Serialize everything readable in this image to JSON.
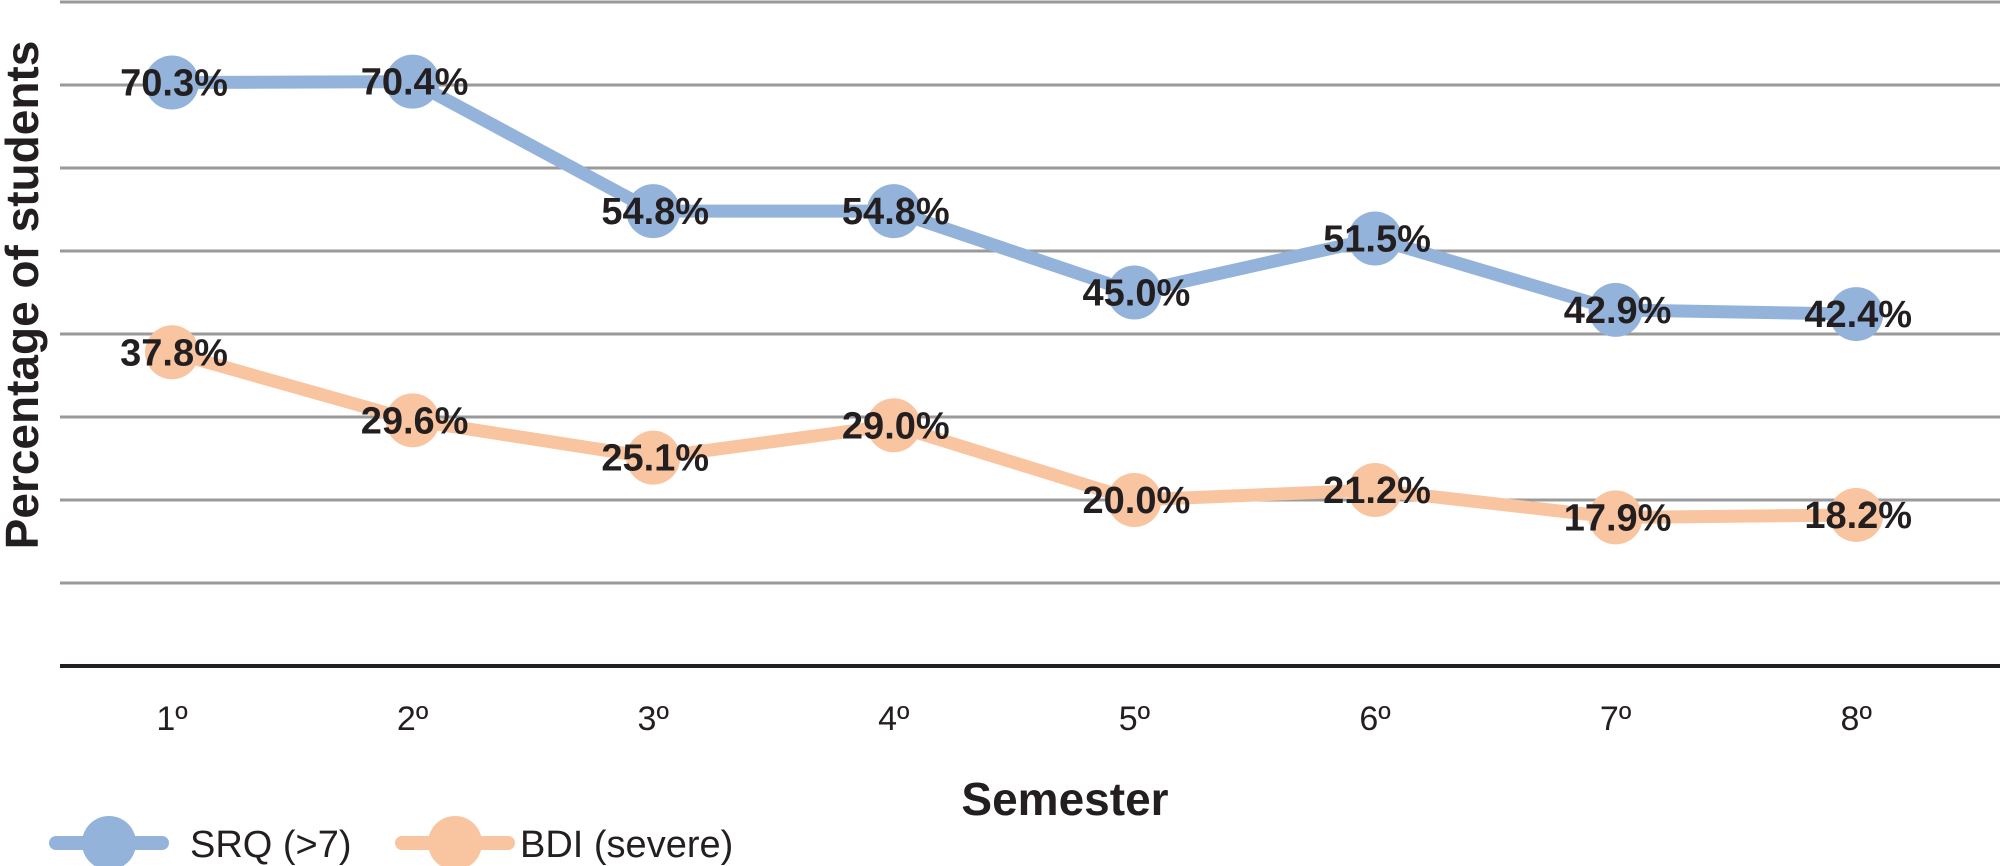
{
  "chart_data": {
    "type": "line",
    "title": "",
    "xlabel": "Semester",
    "ylabel": "Percentage of students",
    "categories": [
      "1º",
      "2º",
      "3º",
      "4º",
      "5º",
      "6º",
      "7º",
      "8º"
    ],
    "ylim": [
      0,
      80
    ],
    "y_grid_step": 10,
    "grid": true,
    "legend_position": "bottom-left",
    "series": [
      {
        "name": "SRQ (>7)",
        "color": "#94b3da",
        "values": [
          70.3,
          70.4,
          54.8,
          54.8,
          45.0,
          51.5,
          42.9,
          42.4
        ],
        "labels": [
          "70.3%",
          "70.4%",
          "54.8%",
          "54.8%",
          "45.0%",
          "51.5%",
          "42.9%",
          "42.4%"
        ]
      },
      {
        "name": "BDI (severe)",
        "color": "#f9c4a0",
        "values": [
          37.8,
          29.6,
          25.1,
          29.0,
          20.0,
          21.2,
          17.9,
          18.2
        ],
        "labels": [
          "37.8%",
          "29.6%",
          "25.1%",
          "29.0%",
          "20.0%",
          "21.2%",
          "17.9%",
          "18.2%"
        ]
      }
    ]
  }
}
